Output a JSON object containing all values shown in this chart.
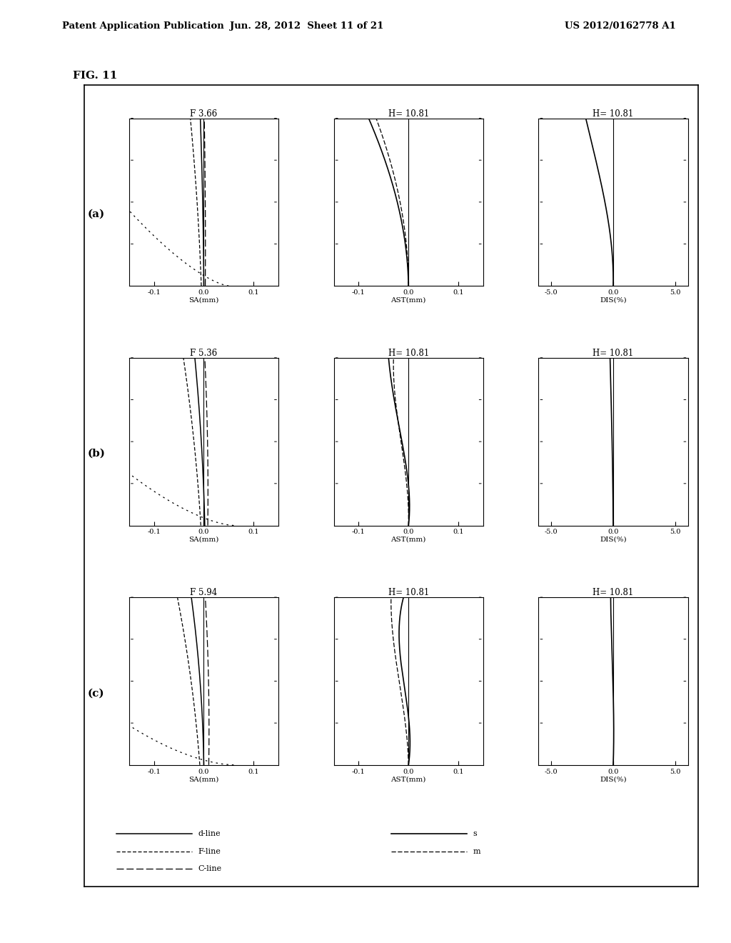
{
  "header_left": "Patent Application Publication",
  "header_center": "Jun. 28, 2012  Sheet 11 of 21",
  "header_right": "US 2012/0162778 A1",
  "fig_label": "FIG. 11",
  "rows": [
    {
      "label": "(a)",
      "sa_title": "F 3.66",
      "ast_title": "H= 10.81",
      "dis_title": "H= 10.81"
    },
    {
      "label": "(b)",
      "sa_title": "F 5.36",
      "ast_title": "H= 10.81",
      "dis_title": "H= 10.81"
    },
    {
      "label": "(c)",
      "sa_title": "F 5.94",
      "ast_title": "H= 10.81",
      "dis_title": "H= 10.81"
    }
  ],
  "background_color": "#ffffff"
}
